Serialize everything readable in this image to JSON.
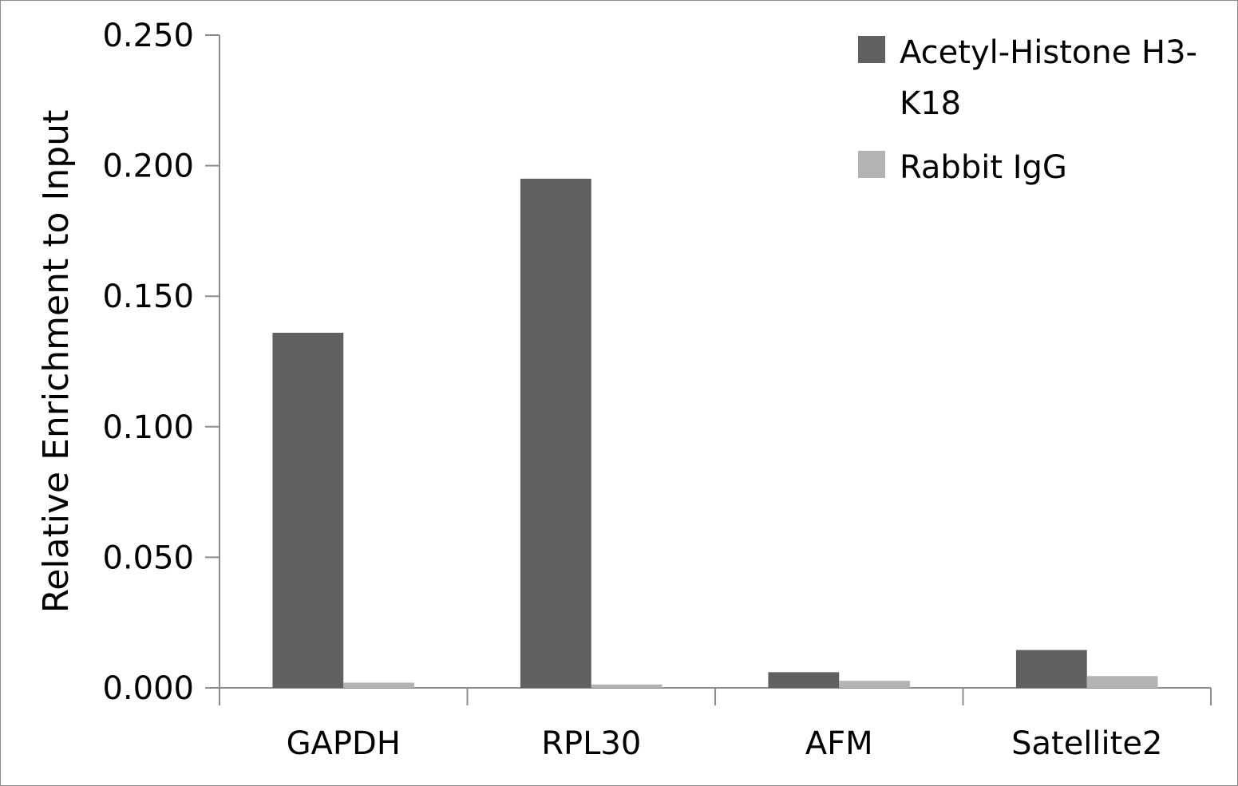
{
  "chart_data": {
    "type": "bar",
    "title": "",
    "xlabel": "",
    "ylabel": "Relative Enrichment to Input",
    "categories": [
      "GAPDH",
      "RPL30",
      "AFM",
      "Satellite2"
    ],
    "series": [
      {
        "name": "Acetyl-Histone H3-K18",
        "legend_lines": [
          "Acetyl-Histone H3-",
          "K18"
        ],
        "color": "#606060",
        "values": [
          0.136,
          0.195,
          0.006,
          0.0145
        ]
      },
      {
        "name": "Rabbit IgG",
        "legend_lines": [
          "Rabbit IgG"
        ],
        "color": "#b3b3b3",
        "values": [
          0.002,
          0.0013,
          0.0027,
          0.0045
        ]
      }
    ],
    "ylim": [
      0,
      0.25
    ],
    "yticks": [
      0,
      0.05,
      0.1,
      0.15,
      0.2,
      0.25
    ],
    "ytick_labels": [
      "0.000",
      "0.050",
      "0.100",
      "0.150",
      "0.200",
      "0.250"
    ],
    "grid": false,
    "legend_position": "top-right"
  }
}
